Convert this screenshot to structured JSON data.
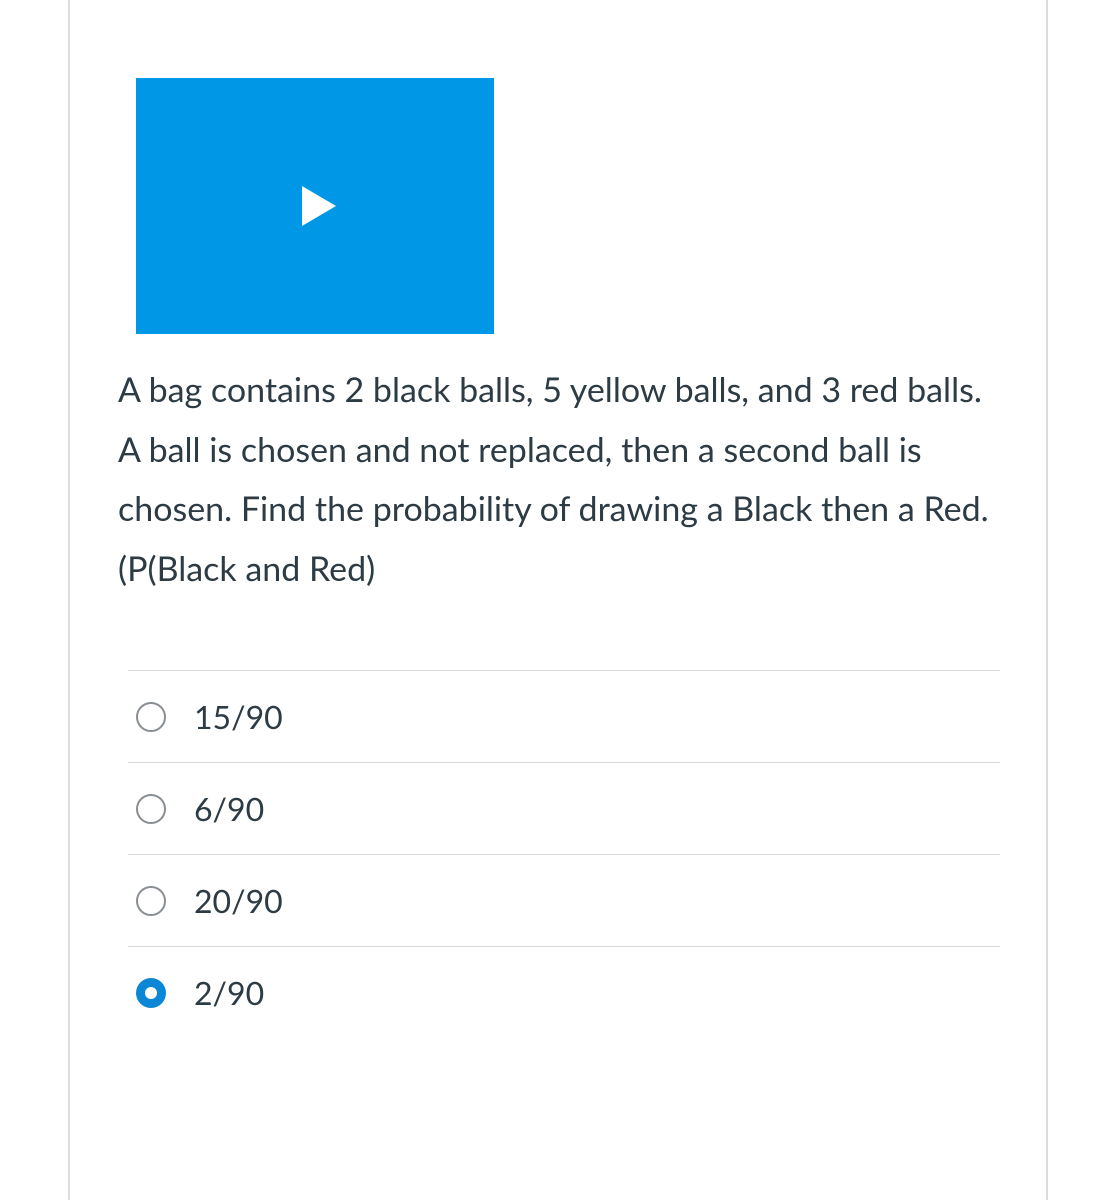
{
  "question": {
    "text": "A bag contains 2 black balls, 5 yellow balls, and 3 red balls.  A ball is chosen and not replaced, then a second ball is chosen.  Find the probability of drawing a Black then a Red. (P(Black and Red)"
  },
  "video": {
    "thumb_color": "#0097e6",
    "icon_color": "#ffffff"
  },
  "options": [
    {
      "label": "15/90",
      "selected": false
    },
    {
      "label": "6/90",
      "selected": false
    },
    {
      "label": "20/90",
      "selected": false
    },
    {
      "label": "2/90",
      "selected": true
    }
  ],
  "colors": {
    "text": "#2d3b45",
    "border": "#d6dadd",
    "frame_border": "#d9dde1",
    "radio_border": "#888e93",
    "radio_selected": "#0b87d6",
    "background": "#ffffff"
  }
}
